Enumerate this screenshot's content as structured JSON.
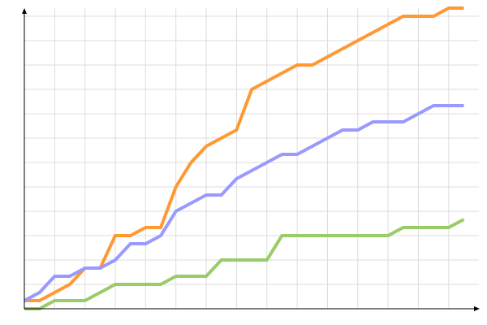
{
  "chart_data": {
    "type": "line",
    "title": "",
    "xlabel": "",
    "ylabel": "",
    "x": [
      0,
      1,
      2,
      3,
      4,
      5,
      6,
      7,
      8,
      9,
      10,
      11,
      12,
      13,
      14,
      15,
      16,
      17,
      18,
      19,
      20,
      21,
      22,
      23,
      24,
      25,
      26,
      27,
      28,
      29
    ],
    "xlim": [
      0,
      29
    ],
    "ylim": [
      0,
      37
    ],
    "x_grid_step": 2,
    "y_grid_step": 3,
    "grid": true,
    "tick_labels": false,
    "legend": "none",
    "series": [
      {
        "color": "#ff9933",
        "values": [
          1,
          1,
          2,
          3,
          5,
          5,
          9,
          9,
          10,
          10,
          15,
          18,
          20,
          21,
          22,
          27,
          28,
          29,
          30,
          30,
          31,
          32,
          33,
          34,
          35,
          36,
          36,
          36,
          37,
          37
        ]
      },
      {
        "color": "#9999ff",
        "values": [
          1,
          2,
          4,
          4,
          5,
          5,
          6,
          8,
          8,
          9,
          12,
          13,
          14,
          14,
          16,
          17,
          18,
          19,
          19,
          20,
          21,
          22,
          22,
          23,
          23,
          23,
          24,
          25,
          25,
          25
        ]
      },
      {
        "color": "#99cc66",
        "values": [
          0,
          0,
          1,
          1,
          1,
          2,
          3,
          3,
          3,
          3,
          4,
          4,
          4,
          6,
          6,
          6,
          6,
          9,
          9,
          9,
          9,
          9,
          9,
          9,
          9,
          10,
          10,
          10,
          10,
          11
        ]
      }
    ],
    "axis_color": "#000000",
    "grid_color": "#dddddd"
  }
}
